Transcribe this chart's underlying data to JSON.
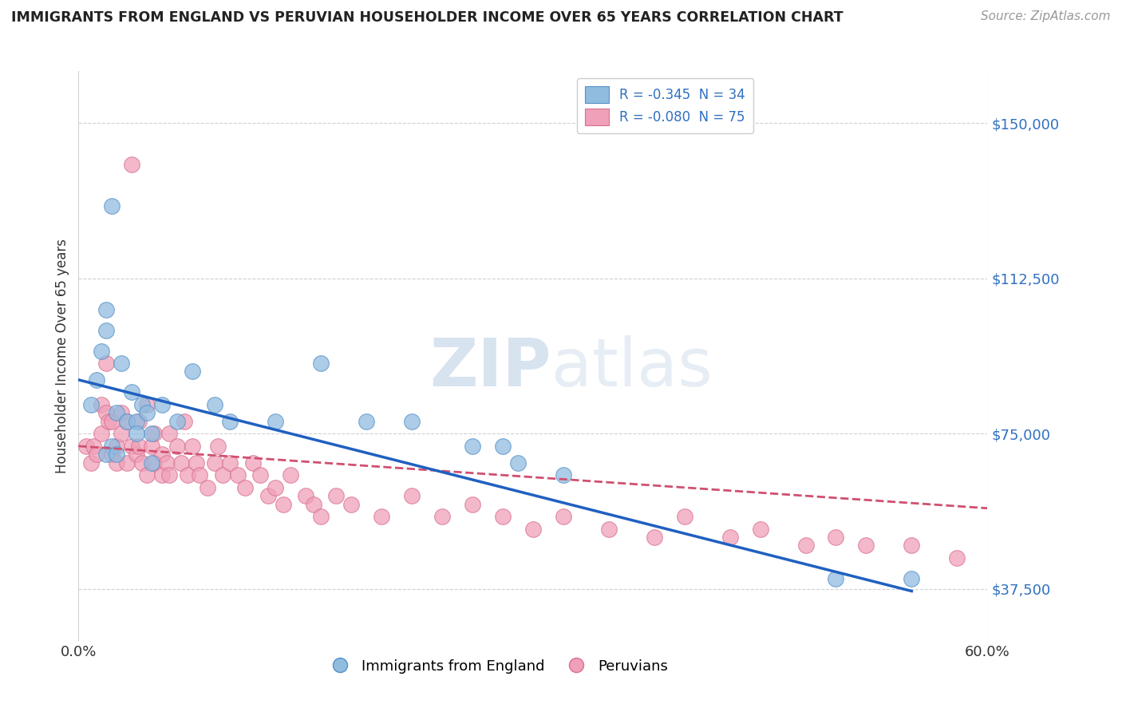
{
  "title": "IMMIGRANTS FROM ENGLAND VS PERUVIAN HOUSEHOLDER INCOME OVER 65 YEARS CORRELATION CHART",
  "source": "Source: ZipAtlas.com",
  "ylabel": "Householder Income Over 65 years",
  "xlim": [
    0.0,
    0.6
  ],
  "ylim": [
    25000,
    162500
  ],
  "yticks": [
    37500,
    75000,
    112500,
    150000
  ],
  "ytick_labels": [
    "$37,500",
    "$75,000",
    "$112,500",
    "$150,000"
  ],
  "xtick_positions": [
    0.0,
    0.6
  ],
  "xtick_labels": [
    "0.0%",
    "60.0%"
  ],
  "legend_label1": "Immigrants from England",
  "legend_label2": "Peruvians",
  "legend_r1": "R = -0.345",
  "legend_n1": "N = 34",
  "legend_r2": "R = -0.080",
  "legend_n2": "N = 75",
  "blue_scatter_x": [
    0.008,
    0.022,
    0.018,
    0.012,
    0.028,
    0.035,
    0.025,
    0.032,
    0.015,
    0.042,
    0.038,
    0.022,
    0.018,
    0.048,
    0.045,
    0.055,
    0.065,
    0.075,
    0.09,
    0.1,
    0.13,
    0.16,
    0.19,
    0.22,
    0.26,
    0.29,
    0.32,
    0.5,
    0.55,
    0.28,
    0.038,
    0.018,
    0.025,
    0.048
  ],
  "blue_scatter_y": [
    82000,
    130000,
    105000,
    88000,
    92000,
    85000,
    80000,
    78000,
    95000,
    82000,
    78000,
    72000,
    100000,
    75000,
    80000,
    82000,
    78000,
    90000,
    82000,
    78000,
    78000,
    92000,
    78000,
    78000,
    72000,
    68000,
    65000,
    40000,
    40000,
    72000,
    75000,
    70000,
    70000,
    68000
  ],
  "pink_scatter_x": [
    0.005,
    0.008,
    0.01,
    0.012,
    0.015,
    0.015,
    0.018,
    0.02,
    0.022,
    0.022,
    0.025,
    0.025,
    0.028,
    0.028,
    0.032,
    0.032,
    0.035,
    0.035,
    0.038,
    0.04,
    0.04,
    0.042,
    0.045,
    0.045,
    0.048,
    0.05,
    0.05,
    0.055,
    0.055,
    0.058,
    0.06,
    0.065,
    0.068,
    0.07,
    0.072,
    0.075,
    0.078,
    0.08,
    0.085,
    0.09,
    0.092,
    0.095,
    0.1,
    0.105,
    0.11,
    0.115,
    0.12,
    0.125,
    0.13,
    0.135,
    0.14,
    0.15,
    0.155,
    0.16,
    0.17,
    0.18,
    0.2,
    0.22,
    0.24,
    0.26,
    0.28,
    0.3,
    0.32,
    0.35,
    0.38,
    0.4,
    0.43,
    0.45,
    0.48,
    0.5,
    0.52,
    0.55,
    0.58,
    0.018,
    0.06
  ],
  "pink_scatter_y": [
    72000,
    68000,
    72000,
    70000,
    75000,
    82000,
    80000,
    78000,
    70000,
    78000,
    72000,
    68000,
    75000,
    80000,
    78000,
    68000,
    72000,
    140000,
    70000,
    72000,
    78000,
    68000,
    65000,
    82000,
    72000,
    68000,
    75000,
    70000,
    65000,
    68000,
    75000,
    72000,
    68000,
    78000,
    65000,
    72000,
    68000,
    65000,
    62000,
    68000,
    72000,
    65000,
    68000,
    65000,
    62000,
    68000,
    65000,
    60000,
    62000,
    58000,
    65000,
    60000,
    58000,
    55000,
    60000,
    58000,
    55000,
    60000,
    55000,
    58000,
    55000,
    52000,
    55000,
    52000,
    50000,
    55000,
    50000,
    52000,
    48000,
    50000,
    48000,
    48000,
    45000,
    92000,
    65000
  ],
  "blue_line_x": [
    0.0,
    0.55
  ],
  "blue_line_y": [
    88000,
    37000
  ],
  "pink_line_x": [
    0.0,
    0.6
  ],
  "pink_line_y": [
    72000,
    57000
  ],
  "watermark1": "ZIP",
  "watermark2": "atlas",
  "background_color": "#ffffff",
  "grid_color": "#d0d0d8",
  "blue_scatter_color": "#90bce0",
  "blue_scatter_edge": "#5590c8",
  "pink_scatter_color": "#f0a0b8",
  "pink_scatter_edge": "#d87090",
  "blue_line_color": "#2060c0",
  "pink_line_color": "#d05070",
  "ytick_color": "#3070c0",
  "xtick_color": "#333333"
}
